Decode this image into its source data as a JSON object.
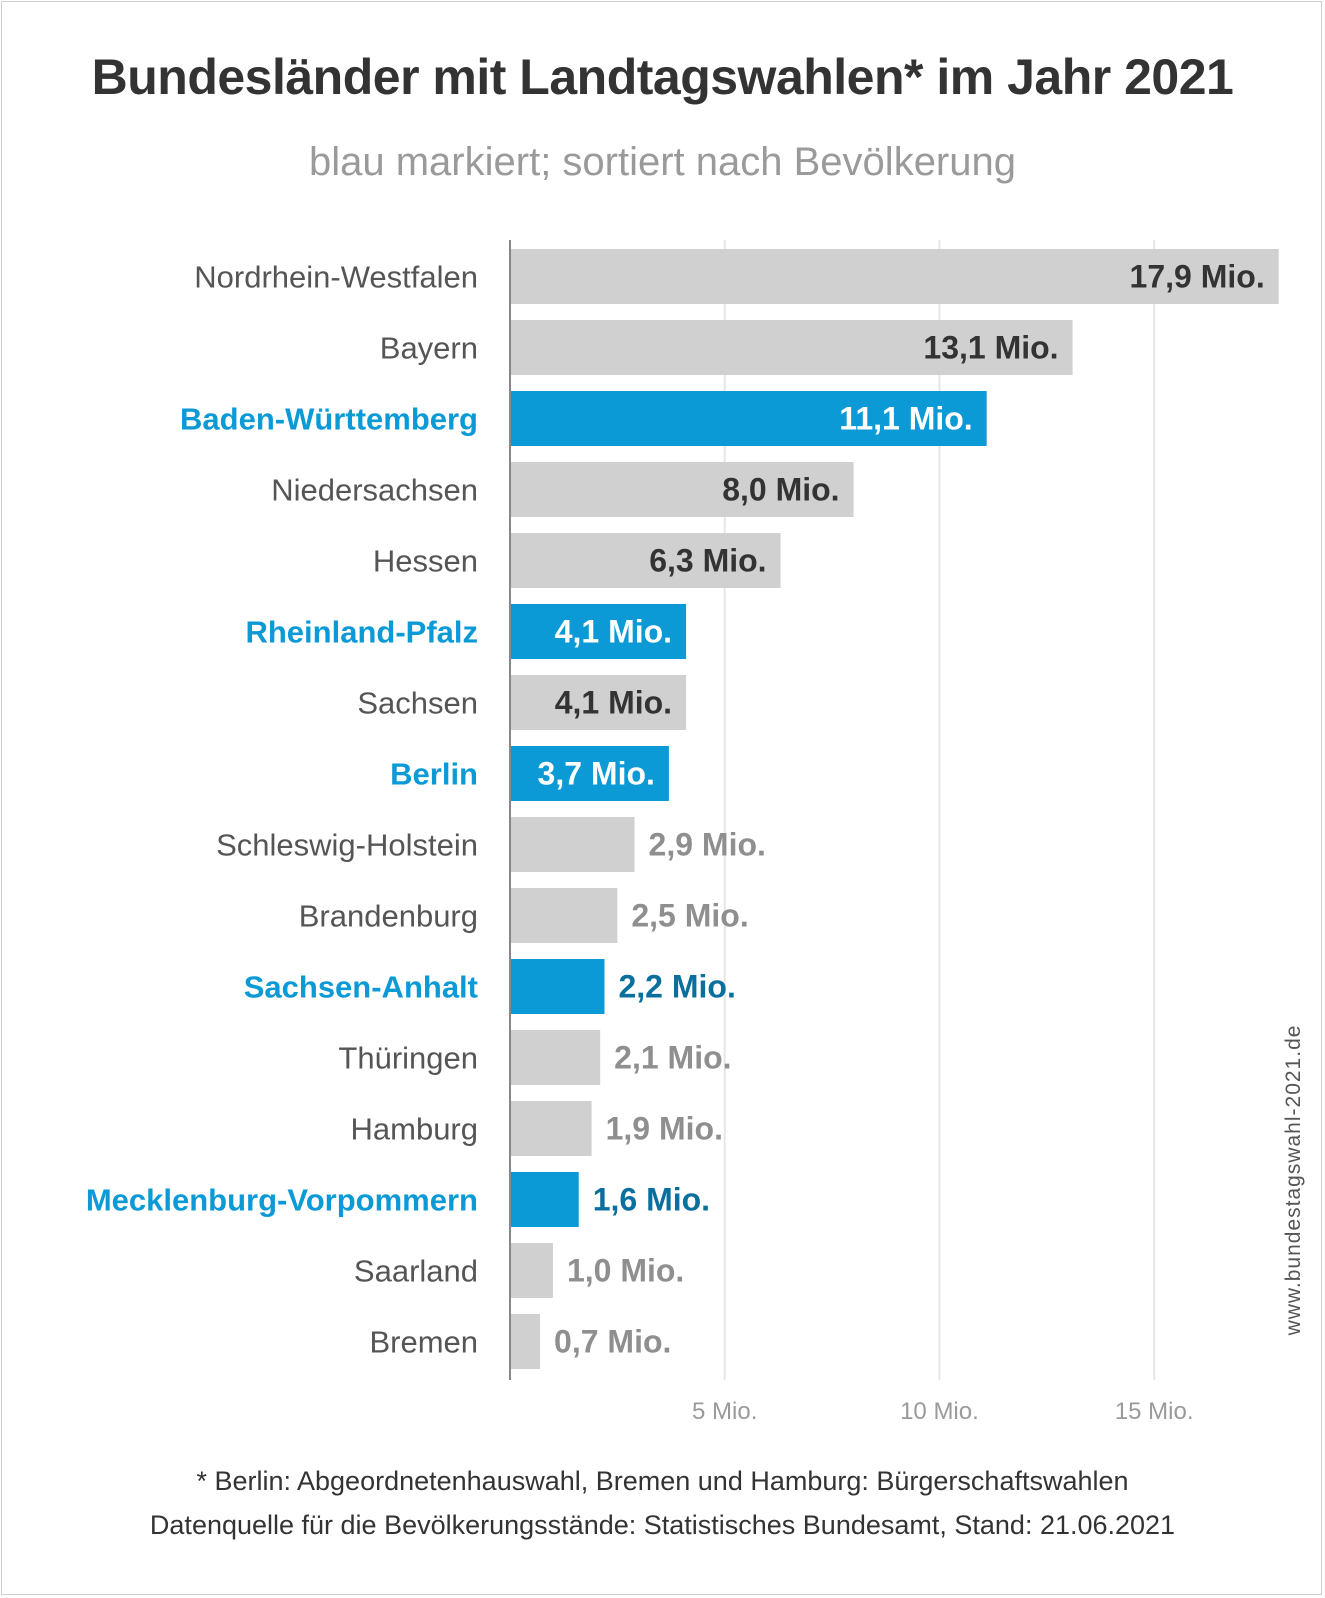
{
  "title": "Bundesländer mit Landtagswahlen* im Jahr 2021",
  "subtitle": "blau markiert; sortiert nach Bevölkerung",
  "watermark": "www.bundestagswahl-2021.de",
  "footnote": "* Berlin: Abgeordnetenhauswahl, Bremen und Hamburg: Bürgerschaftswahlen",
  "source": "Datenquelle für die Bevölkerungsstände: Statistisches Bundesamt, Stand: 21.06.2021",
  "colors": {
    "highlight": "#0b9ad6",
    "highlight_value_outside": "#0b6f9e",
    "normal_bar": "#d0d0d0",
    "normal_label": "#555555",
    "normal_value_inside": "#333333",
    "normal_value_outside": "#8f8f8f",
    "gridline": "#e6e6e6",
    "axis": "#888888",
    "tick_label": "#9a9a9a"
  },
  "chart_data": {
    "type": "bar",
    "orientation": "horizontal",
    "categories": [
      "Nordrhein-Westfalen",
      "Bayern",
      "Baden-Württemberg",
      "Niedersachsen",
      "Hessen",
      "Rheinland-Pfalz",
      "Sachsen",
      "Berlin",
      "Schleswig-Holstein",
      "Brandenburg",
      "Sachsen-Anhalt",
      "Thüringen",
      "Hamburg",
      "Mecklenburg-Vorpommern",
      "Saarland",
      "Bremen"
    ],
    "values": [
      17.9,
      13.1,
      11.1,
      8.0,
      6.3,
      4.1,
      4.1,
      3.7,
      2.9,
      2.5,
      2.2,
      2.1,
      1.9,
      1.6,
      1.0,
      0.7
    ],
    "value_labels": [
      "17,9 Mio.",
      "13,1 Mio.",
      "11,1 Mio.",
      "8,0 Mio.",
      "6,3 Mio.",
      "4,1 Mio.",
      "4,1 Mio.",
      "3,7 Mio.",
      "2,9 Mio.",
      "2,5 Mio.",
      "2,2 Mio.",
      "2,1 Mio.",
      "1,9 Mio.",
      "1,6 Mio.",
      "1,0 Mio.",
      "0,7 Mio."
    ],
    "highlighted": [
      false,
      false,
      true,
      false,
      false,
      true,
      false,
      true,
      false,
      false,
      true,
      false,
      false,
      true,
      false,
      false
    ],
    "xlim": [
      0,
      18
    ],
    "xticks": [
      5,
      10,
      15
    ],
    "xtick_labels": [
      "5 Mio.",
      "10 Mio.",
      "15 Mio."
    ],
    "grid": true,
    "legend": "none"
  }
}
